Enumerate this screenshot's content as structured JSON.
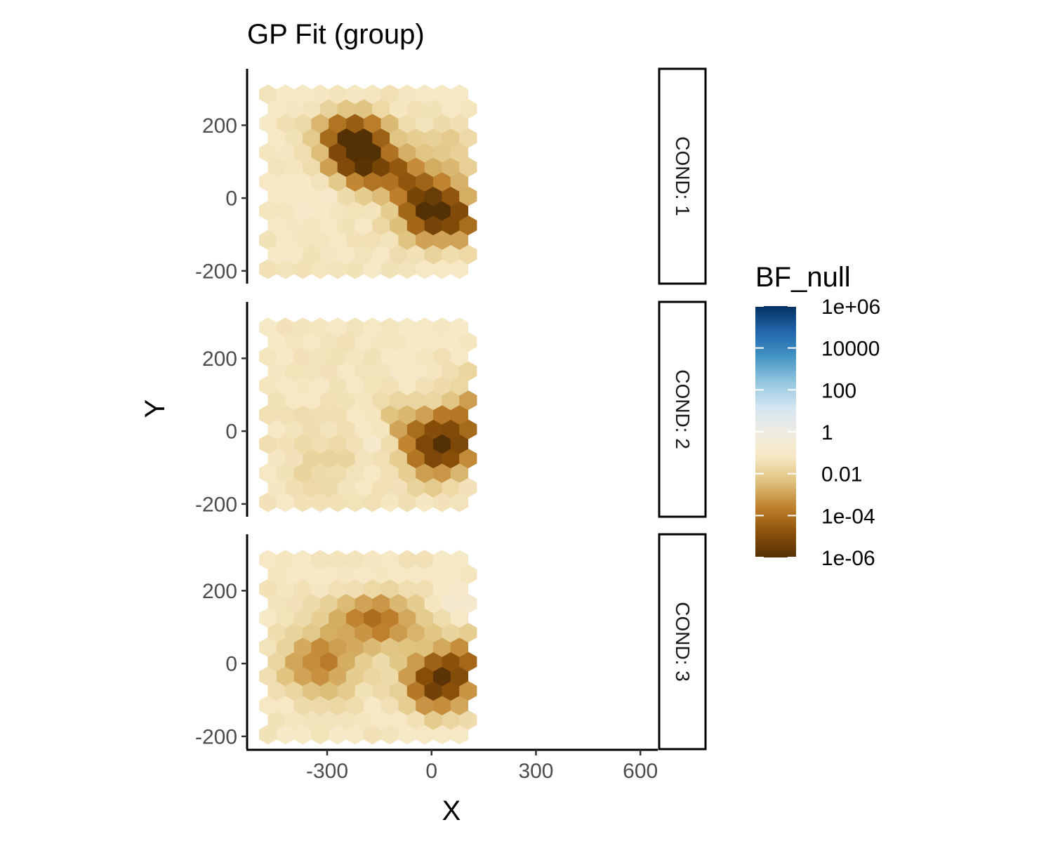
{
  "chart_data": {
    "type": "heatmap",
    "subtype": "hexbin-faceted",
    "title": "GP Fit (group)",
    "xlabel": "X",
    "ylabel": "Y",
    "xlim": [
      -530,
      650
    ],
    "ylim": [
      -235,
      355
    ],
    "x_ticks": [
      -300,
      0,
      300,
      600
    ],
    "x_tick_labels": [
      "-300",
      "0",
      "300",
      "600"
    ],
    "y_ticks": [
      -200,
      0,
      200
    ],
    "y_tick_labels": [
      "-200",
      "0",
      "200"
    ],
    "grid": false,
    "legend": {
      "title": "BF_null",
      "scale": "log10",
      "position": "right",
      "range_log10": [
        -6,
        6
      ],
      "breaks_log10": [
        6,
        4,
        2,
        0,
        -2,
        -4,
        -6
      ],
      "labels": [
        "1e+06",
        "10000",
        "100",
        "1",
        "0.01",
        "1e-04",
        "1e-06"
      ],
      "palette": [
        "#543005",
        "#8c510a",
        "#bf812d",
        "#dfc27d",
        "#f6e8c3",
        "#f5f5f5",
        "#c7eae5",
        "#80cdc1",
        "#35978f",
        "#01665e",
        "#003c30"
      ],
      "palette_mid": [
        "#543005",
        "#8c510a",
        "#bf812d",
        "#dfc27d",
        "#f6e8c3",
        "#f0ece2",
        "#d1e5f0",
        "#92c5de",
        "#4393c3",
        "#2166ac",
        "#053061"
      ]
    },
    "hex_grid": {
      "x_start": -470,
      "x_step": 50,
      "y_start": -195,
      "y_step": 40,
      "rows": 13,
      "cols": 11
    },
    "background_log10": -1.2,
    "facets": [
      {
        "label": "COND: 1",
        "blobs": [
          {
            "x": -200,
            "y": 100,
            "sx": 65,
            "sy": 55,
            "a": -4.8
          },
          {
            "x": -230,
            "y": 180,
            "sx": 70,
            "sy": 45,
            "a": -3.2
          },
          {
            "x": 0,
            "y": -30,
            "sx": 65,
            "sy": 60,
            "a": -4.8
          },
          {
            "x": -80,
            "y": 60,
            "sx": 40,
            "sy": 40,
            "a": -2.0
          },
          {
            "x": 100,
            "y": -60,
            "sx": 55,
            "sy": 40,
            "a": -2.2
          },
          {
            "x": 60,
            "y": 120,
            "sx": 80,
            "sy": 60,
            "a": -1.0
          },
          {
            "x": 320,
            "y": -90,
            "sx": 80,
            "sy": 60,
            "a": 0.6
          },
          {
            "x": 250,
            "y": 160,
            "sx": 90,
            "sy": 70,
            "a": 0.5
          },
          {
            "x": -250,
            "y": 20,
            "sx": 70,
            "sy": 40,
            "a": 0.6
          }
        ]
      },
      {
        "label": "COND: 2",
        "blobs": [
          {
            "x": 20,
            "y": -40,
            "sx": 70,
            "sy": 60,
            "a": -4.8
          },
          {
            "x": 250,
            "y": 130,
            "sx": 80,
            "sy": 50,
            "a": -3.2
          },
          {
            "x": 120,
            "y": 40,
            "sx": 60,
            "sy": 50,
            "a": -1.8
          },
          {
            "x": 420,
            "y": -90,
            "sx": 90,
            "sy": 50,
            "a": -1.8
          },
          {
            "x": -100,
            "y": 30,
            "sx": 40,
            "sy": 40,
            "a": -1.2
          },
          {
            "x": -300,
            "y": -80,
            "sx": 100,
            "sy": 80,
            "a": -0.6
          },
          {
            "x": -150,
            "y": -20,
            "sx": 50,
            "sy": 60,
            "a": 0.6
          },
          {
            "x": 420,
            "y": 60,
            "sx": 60,
            "sy": 60,
            "a": 0.7
          }
        ]
      },
      {
        "label": "COND: 3",
        "blobs": [
          {
            "x": 20,
            "y": -50,
            "sx": 65,
            "sy": 55,
            "a": -4.6
          },
          {
            "x": -150,
            "y": 120,
            "sx": 90,
            "sy": 50,
            "a": -2.8
          },
          {
            "x": -320,
            "y": 0,
            "sx": 80,
            "sy": 60,
            "a": -2.5
          },
          {
            "x": 150,
            "y": 20,
            "sx": 80,
            "sy": 50,
            "a": -2.2
          },
          {
            "x": 60,
            "y": 160,
            "sx": 40,
            "sy": 40,
            "a": 0.6
          },
          {
            "x": 300,
            "y": -50,
            "sx": 90,
            "sy": 70,
            "a": 0.7
          },
          {
            "x": 470,
            "y": 140,
            "sx": 80,
            "sy": 80,
            "a": 0.5
          }
        ]
      }
    ]
  }
}
